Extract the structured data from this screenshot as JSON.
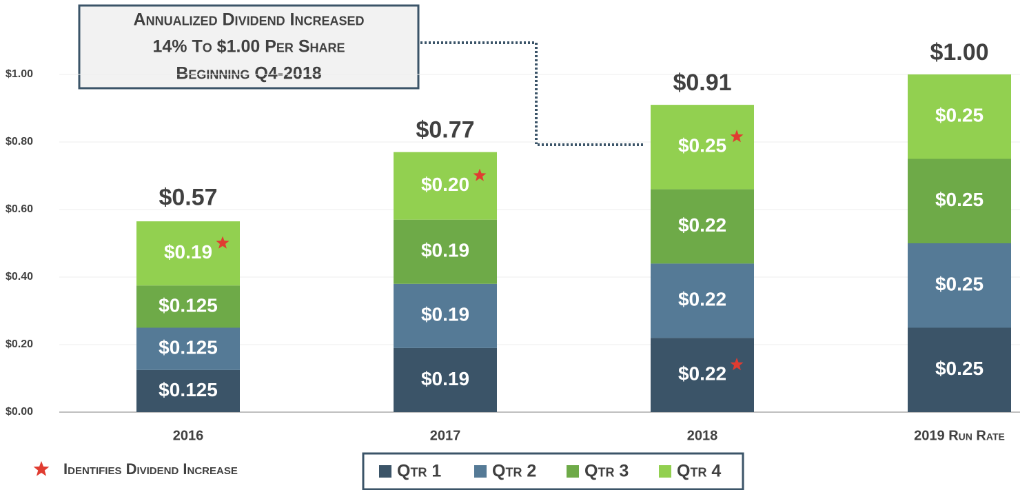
{
  "chart_data": {
    "type": "stacked_bar",
    "annotation": [
      "Annualized Dividend Increased",
      "14% To $1.00 Per Share",
      "Beginning Q4-2018"
    ],
    "categories": [
      "2016",
      "2017",
      "2018",
      "2019 Run Rate"
    ],
    "series": [
      {
        "name": "Qtr 1",
        "color": "#3b5468",
        "values": [
          0.125,
          0.19,
          0.22,
          0.25
        ],
        "value_labels": [
          "$0.125",
          "$0.19",
          "$0.22",
          "$0.25"
        ]
      },
      {
        "name": "Qtr 2",
        "color": "#557a96",
        "values": [
          0.125,
          0.19,
          0.22,
          0.25
        ],
        "value_labels": [
          "$0.125",
          "$0.19",
          "$0.22",
          "$0.25"
        ]
      },
      {
        "name": "Qtr 3",
        "color": "#6eaa48",
        "values": [
          0.125,
          0.19,
          0.22,
          0.25
        ],
        "value_labels": [
          "$0.125",
          "$0.19",
          "$0.22",
          "$0.25"
        ]
      },
      {
        "name": "Qtr 4",
        "color": "#92d050",
        "values": [
          0.19,
          0.2,
          0.25,
          0.25
        ],
        "value_labels": [
          "$0.19",
          "$0.20",
          "$0.25",
          "$0.25"
        ]
      }
    ],
    "totals": [
      0.57,
      0.77,
      0.91,
      1.0
    ],
    "total_labels": [
      "$0.57",
      "$0.77",
      "$0.91",
      "$1.00"
    ],
    "increase_marks": [
      [
        3,
        0
      ],
      [
        3,
        1
      ],
      [
        3,
        2
      ],
      [
        0,
        2
      ]
    ],
    "increase_note": "Identifies Dividend Increase",
    "ylim": [
      0,
      1.2
    ],
    "yticks": [
      {
        "value": 0,
        "label": "$0.00"
      },
      {
        "value": 0.2,
        "label": "$0.20"
      },
      {
        "value": 0.4,
        "label": "$0.40"
      },
      {
        "value": 0.6,
        "label": "$0.60"
      },
      {
        "value": 0.8,
        "label": "$0.80"
      },
      {
        "value": 1.0,
        "label": "$1.00"
      }
    ],
    "grid": true
  }
}
